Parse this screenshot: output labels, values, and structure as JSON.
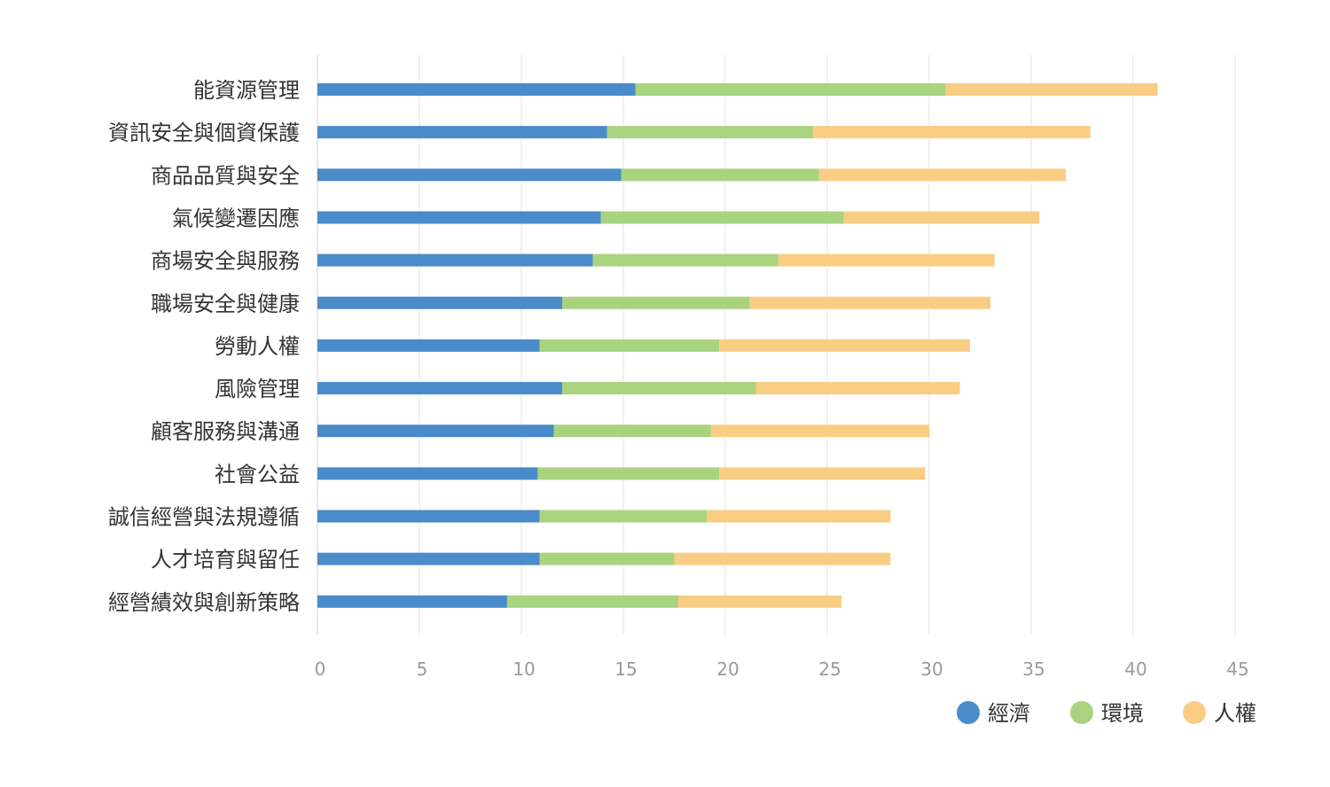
{
  "chart_data": {
    "type": "bar",
    "orientation": "horizontal",
    "stacked": true,
    "categories": [
      "能資源管理",
      "資訊安全與個資保護",
      "商品品質與安全",
      "氣候變遷因應",
      "商場安全與服務",
      "職場安全與健康",
      "勞動人權",
      "風險管理",
      "顧客服務與溝通",
      "社會公益",
      "誠信經營與法規遵循",
      "人才培育與留任",
      "經營績效與創新策略"
    ],
    "series": [
      {
        "name": "經濟",
        "color": "#4a8bc9",
        "values": [
          15.6,
          14.2,
          14.9,
          13.9,
          13.5,
          12.0,
          10.9,
          12.0,
          11.6,
          10.8,
          10.9,
          10.9,
          9.3
        ]
      },
      {
        "name": "環境",
        "color": "#a9d37f",
        "values": [
          15.2,
          10.1,
          9.7,
          11.9,
          9.1,
          9.2,
          8.8,
          9.5,
          7.7,
          8.9,
          8.2,
          6.6,
          8.4
        ]
      },
      {
        "name": "人權",
        "color": "#f9cd83",
        "values": [
          10.4,
          13.6,
          12.1,
          9.6,
          10.6,
          11.8,
          12.3,
          10.0,
          10.7,
          10.1,
          9.0,
          10.6,
          8.0
        ]
      }
    ],
    "x_ticks": [
      "0",
      "5",
      "10",
      "15",
      "20",
      "25",
      "30",
      "35",
      "40",
      "45"
    ],
    "xlim": [
      0,
      45
    ],
    "title": "",
    "xlabel": "",
    "ylabel": "",
    "grid": "vertical",
    "legend_position": "bottom-right"
  }
}
